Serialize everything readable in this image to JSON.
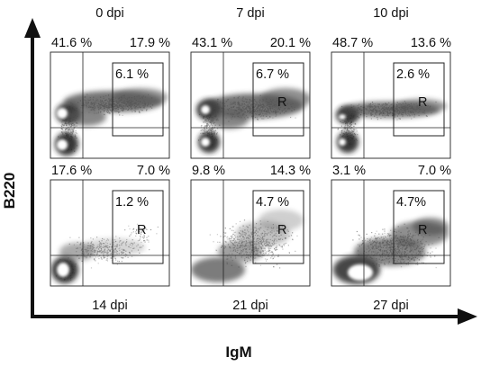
{
  "chart_data": {
    "type": "scatter",
    "description_type": "flow cytometry density dot plots, 2x3 grid",
    "xlabel": "IgM",
    "ylabel": "B220",
    "panels": [
      {
        "time_label": "0 dpi",
        "label_position": "top",
        "upper_left": "41.6 %",
        "upper_right": "17.9 %",
        "gate": "6.1 %",
        "gate_marker": ""
      },
      {
        "time_label": "7 dpi",
        "label_position": "top",
        "upper_left": "43.1 %",
        "upper_right": "20.1 %",
        "gate": "6.7 %",
        "gate_marker": "R"
      },
      {
        "time_label": "10 dpi",
        "label_position": "top",
        "upper_left": "48.7 %",
        "upper_right": "13.6 %",
        "gate": "2.6 %",
        "gate_marker": "R"
      },
      {
        "time_label": "14 dpi",
        "label_position": "bottom",
        "upper_left": "17.6 %",
        "upper_right": "7.0 %",
        "gate": "1.2 %",
        "gate_marker": "R"
      },
      {
        "time_label": "21 dpi",
        "label_position": "bottom",
        "upper_left": "9.8 %",
        "upper_right": "14.3 %",
        "gate": "4.7 %",
        "gate_marker": "R"
      },
      {
        "time_label": "27 dpi",
        "label_position": "bottom",
        "upper_left": "3.1 %",
        "upper_right": "7.0 %",
        "gate": "4.7%",
        "gate_marker": "R"
      }
    ],
    "colors": {
      "dots": "#8a8a8a",
      "dense": "#3a3a3a",
      "core": "#ffffff",
      "lines": "#222222"
    }
  }
}
